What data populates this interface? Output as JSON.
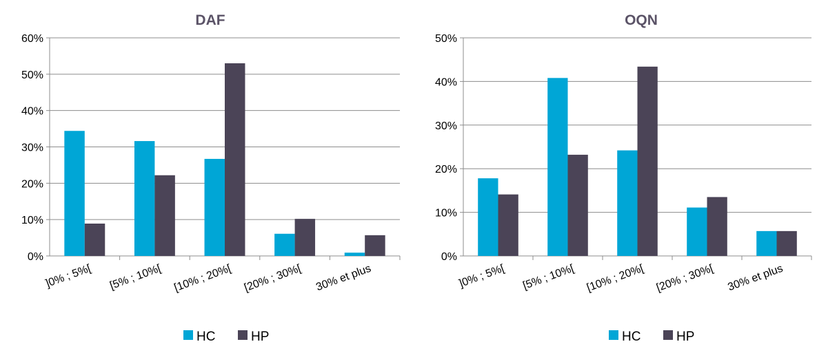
{
  "colors": {
    "HC": "#00a6d6",
    "HP": "#4b4457",
    "grid": "#8c8c8c",
    "title": "#5b5367"
  },
  "chart_data": [
    {
      "type": "bar",
      "title": "DAF",
      "categories": [
        "]0% ; 5%[",
        "[5% ; 10%[",
        "[10% ; 20%[",
        "[20% ; 30%[",
        "30% et plus"
      ],
      "ylim": [
        0,
        60
      ],
      "yticks": [
        0,
        10,
        20,
        30,
        40,
        50,
        60
      ],
      "ytick_labels": [
        "0%",
        "10%",
        "20%",
        "30%",
        "40%",
        "50%",
        "60%"
      ],
      "series": [
        {
          "name": "HC",
          "values": [
            34.4,
            31.6,
            26.7,
            6.1,
            0.9
          ]
        },
        {
          "name": "HP",
          "values": [
            8.9,
            22.2,
            53.0,
            10.2,
            5.7
          ]
        }
      ],
      "legend": "bottom",
      "grid": true
    },
    {
      "type": "bar",
      "title": "OQN",
      "categories": [
        "]0% ; 5%[",
        "[5% ; 10%[",
        "[10% ; 20%[",
        "[20% ; 30%[",
        "30% et plus"
      ],
      "ylim": [
        0,
        50
      ],
      "yticks": [
        0,
        10,
        20,
        30,
        40,
        50
      ],
      "ytick_labels": [
        "0%",
        "10%",
        "20%",
        "30%",
        "40%",
        "50%"
      ],
      "series": [
        {
          "name": "HC",
          "values": [
            17.8,
            40.8,
            24.2,
            11.1,
            5.7
          ]
        },
        {
          "name": "HP",
          "values": [
            14.1,
            23.2,
            43.4,
            13.5,
            5.7
          ]
        }
      ],
      "legend": "bottom",
      "grid": true
    }
  ]
}
